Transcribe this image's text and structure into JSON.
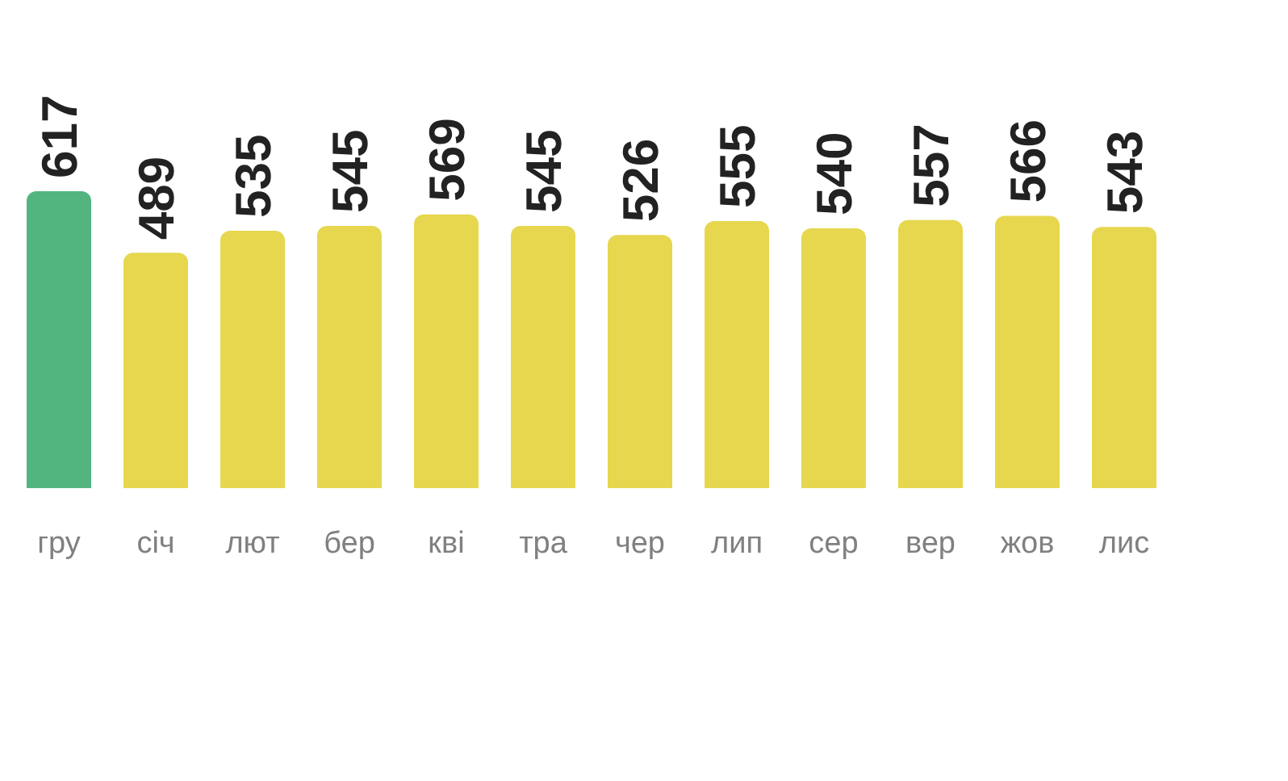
{
  "chart_data": {
    "type": "bar",
    "categories": [
      "гру",
      "січ",
      "лют",
      "бер",
      "кві",
      "тра",
      "чер",
      "лип",
      "сер",
      "вер",
      "жов",
      "лис"
    ],
    "values": [
      617,
      489,
      535,
      545,
      569,
      545,
      526,
      555,
      540,
      557,
      566,
      543
    ],
    "colors": [
      "#52b57f",
      "#e6d74e",
      "#e6d74e",
      "#e6d74e",
      "#e6d74e",
      "#e6d74e",
      "#e6d74e",
      "#e6d74e",
      "#e6d74e",
      "#e6d74e",
      "#e6d74e",
      "#e6d74e"
    ],
    "data_labels": true,
    "grid": false,
    "tick_labels": "x"
  }
}
